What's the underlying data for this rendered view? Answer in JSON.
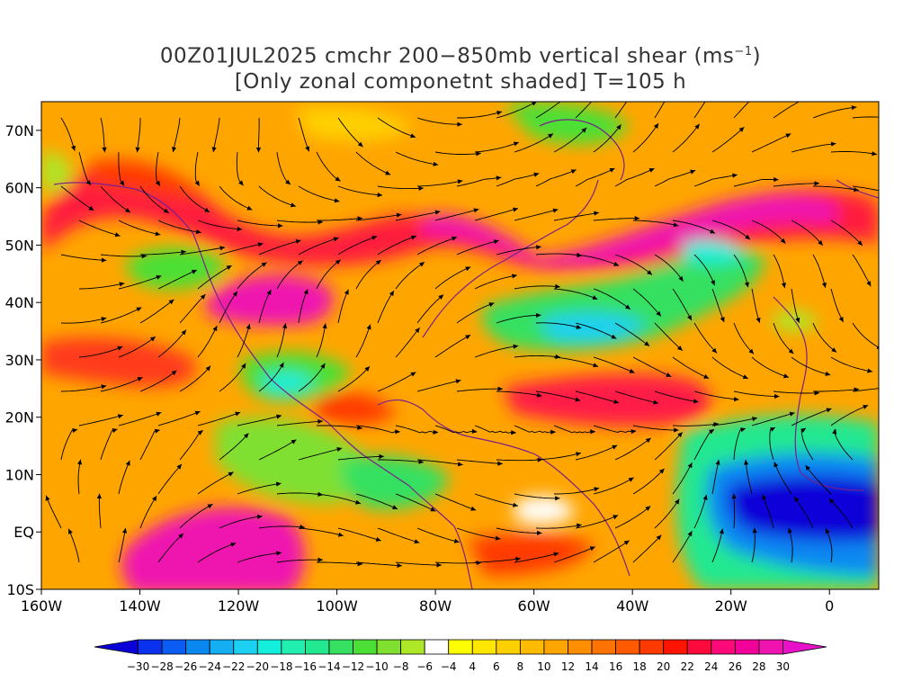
{
  "title": {
    "line1_prefix": "00Z01JUL2025 cmchr 200−850mb vertical shear (ms",
    "line1_sup": "−1",
    "line1_suffix": ")",
    "line2": "[Only zonal componetnt shaded] T=105 h"
  },
  "map": {
    "lon_range": [
      -160,
      10
    ],
    "lat_range": [
      -10,
      75
    ],
    "lon_ticks": [
      {
        "value": -160,
        "label": "160W"
      },
      {
        "value": -140,
        "label": "140W"
      },
      {
        "value": -120,
        "label": "120W"
      },
      {
        "value": -100,
        "label": "100W"
      },
      {
        "value": -80,
        "label": "80W"
      },
      {
        "value": -60,
        "label": "60W"
      },
      {
        "value": -40,
        "label": "40W"
      },
      {
        "value": -20,
        "label": "20W"
      },
      {
        "value": 0,
        "label": "0"
      }
    ],
    "lat_ticks": [
      {
        "value": 70,
        "label": "70N"
      },
      {
        "value": 60,
        "label": "60N"
      },
      {
        "value": 50,
        "label": "50N"
      },
      {
        "value": 40,
        "label": "40N"
      },
      {
        "value": 30,
        "label": "30N"
      },
      {
        "value": 20,
        "label": "20N"
      },
      {
        "value": 10,
        "label": "10N"
      },
      {
        "value": 0,
        "label": "EQ"
      },
      {
        "value": -10,
        "label": "10S"
      }
    ],
    "streamline_color": "#000000",
    "coast_color": "#7a1f8a"
  },
  "colorbar": {
    "levels": [
      "−30",
      "−28",
      "−26",
      "−24",
      "−22",
      "−20",
      "−18",
      "−16",
      "−14",
      "−12",
      "−10",
      "−8",
      "−6",
      "−4",
      "4",
      "6",
      "8",
      "10",
      "12",
      "14",
      "16",
      "18",
      "20",
      "22",
      "24",
      "26",
      "28",
      "30"
    ],
    "colors": [
      "#0a00d8",
      "#0a32ee",
      "#0a5cf2",
      "#0a88f2",
      "#14aef2",
      "#1cd0f2",
      "#14eedc",
      "#22eeb0",
      "#22e890",
      "#36e060",
      "#4ce036",
      "#80e030",
      "#aee628",
      "#ffffff",
      "#ffff00",
      "#ffe600",
      "#ffd000",
      "#ffbb00",
      "#ffa500",
      "#ff8f00",
      "#ff7400",
      "#ff5a00",
      "#ff3a00",
      "#ff1400",
      "#ff0a3c",
      "#ff0a78",
      "#f2009a",
      "#ef14b0",
      "#e810c8"
    ]
  }
}
